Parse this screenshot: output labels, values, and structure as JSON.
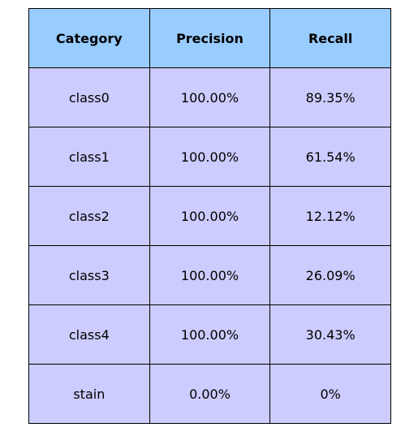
{
  "colors": {
    "header_bg": "#99ccff",
    "cell_bg": "#ccccff",
    "border": "#000000"
  },
  "chart_data": {
    "type": "table",
    "columns": [
      "Category",
      "Precision",
      "Recall"
    ],
    "rows": [
      [
        "class0",
        "100.00%",
        "89.35%"
      ],
      [
        "class1",
        "100.00%",
        "61.54%"
      ],
      [
        "class2",
        "100.00%",
        "12.12%"
      ],
      [
        "class3",
        "100.00%",
        "26.09%"
      ],
      [
        "class4",
        "100.00%",
        "30.43%"
      ],
      [
        "stain",
        "0.00%",
        "0%"
      ]
    ]
  }
}
